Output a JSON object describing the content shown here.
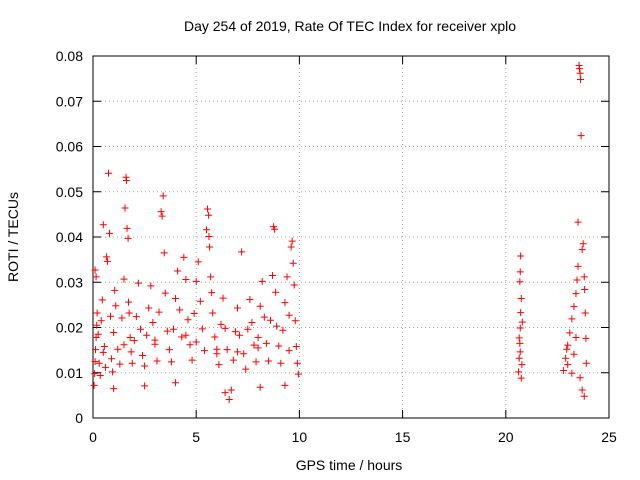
{
  "chart_data": {
    "type": "scatter",
    "title": "Day 254 of 2019, Rate Of TEC Index for receiver xplo",
    "xlabel": "GPS time / hours",
    "ylabel": "ROTI / TECUs",
    "xlim": [
      0,
      25
    ],
    "ylim": [
      0,
      0.08
    ],
    "x_ticks": [
      "0",
      "5",
      "10",
      "15",
      "20",
      "25"
    ],
    "y_ticks": [
      "0",
      "0.01",
      "0.02",
      "0.03",
      "0.04",
      "0.05",
      "0.06",
      "0.07",
      "0.08"
    ],
    "grid": true,
    "marker": "+",
    "color": "#ff0000",
    "series": [
      {
        "points": [
          [
            0.05,
            0.0072
          ],
          [
            0.08,
            0.0098
          ],
          [
            0.1,
            0.0125
          ],
          [
            0.12,
            0.0151
          ],
          [
            0.15,
            0.0178
          ],
          [
            0.18,
            0.0205
          ],
          [
            0.2,
            0.0232
          ],
          [
            0.1,
            0.0327
          ],
          [
            0.15,
            0.0312
          ],
          [
            0.25,
            0.0185
          ],
          [
            0.3,
            0.0121
          ],
          [
            0.35,
            0.0094
          ],
          [
            0.4,
            0.0215
          ],
          [
            0.45,
            0.0261
          ],
          [
            0.5,
            0.0427
          ],
          [
            0.55,
            0.0158
          ],
          [
            0.6,
            0.0112
          ],
          [
            0.65,
            0.0356
          ],
          [
            0.7,
            0.0346
          ],
          [
            0.75,
            0.0541
          ],
          [
            0.8,
            0.0408
          ],
          [
            0.85,
            0.0225
          ],
          [
            0.9,
            0.0131
          ],
          [
            0.95,
            0.0102
          ],
          [
            1.0,
            0.0189
          ],
          [
            1.05,
            0.0282
          ],
          [
            1.1,
            0.0248
          ],
          [
            1.2,
            0.0152
          ],
          [
            1.3,
            0.0119
          ],
          [
            1.4,
            0.0221
          ],
          [
            1.5,
            0.0307
          ],
          [
            1.55,
            0.0464
          ],
          [
            1.6,
            0.0532
          ],
          [
            1.62,
            0.0525
          ],
          [
            1.65,
            0.0419
          ],
          [
            1.7,
            0.0397
          ],
          [
            1.72,
            0.0256
          ],
          [
            1.75,
            0.0232
          ],
          [
            1.8,
            0.0178
          ],
          [
            1.85,
            0.0146
          ],
          [
            1.9,
            0.0121
          ],
          [
            2.0,
            0.0171
          ],
          [
            2.1,
            0.0224
          ],
          [
            2.2,
            0.0298
          ],
          [
            2.3,
            0.0196
          ],
          [
            2.4,
            0.0138
          ],
          [
            2.5,
            0.0115
          ],
          [
            2.6,
            0.0183
          ],
          [
            2.7,
            0.0243
          ],
          [
            2.8,
            0.0292
          ],
          [
            2.9,
            0.0211
          ],
          [
            3.0,
            0.0163
          ],
          [
            3.1,
            0.0126
          ],
          [
            3.2,
            0.0234
          ],
          [
            3.3,
            0.0456
          ],
          [
            3.35,
            0.0446
          ],
          [
            3.4,
            0.0491
          ],
          [
            3.45,
            0.0365
          ],
          [
            3.5,
            0.0276
          ],
          [
            3.6,
            0.0192
          ],
          [
            3.7,
            0.0151
          ],
          [
            3.8,
            0.0124
          ],
          [
            3.9,
            0.0196
          ],
          [
            4.0,
            0.0264
          ],
          [
            4.1,
            0.0325
          ],
          [
            4.2,
            0.0239
          ],
          [
            4.3,
            0.0179
          ],
          [
            4.4,
            0.0355
          ],
          [
            4.5,
            0.0306
          ],
          [
            4.6,
            0.0217
          ],
          [
            4.7,
            0.0162
          ],
          [
            4.8,
            0.0128
          ],
          [
            4.9,
            0.0231
          ],
          [
            5.0,
            0.0302
          ],
          [
            5.1,
            0.0345
          ],
          [
            5.2,
            0.0258
          ],
          [
            5.3,
            0.0197
          ],
          [
            5.4,
            0.0149
          ],
          [
            5.5,
            0.0416
          ],
          [
            5.55,
            0.0462
          ],
          [
            5.6,
            0.0448
          ],
          [
            5.62,
            0.0401
          ],
          [
            5.65,
            0.0378
          ],
          [
            5.7,
            0.0312
          ],
          [
            5.75,
            0.0277
          ],
          [
            5.8,
            0.0232
          ],
          [
            5.9,
            0.0179
          ],
          [
            6.0,
            0.0142
          ],
          [
            6.1,
            0.0118
          ],
          [
            6.2,
            0.0207
          ],
          [
            6.3,
            0.0265
          ],
          [
            6.4,
            0.0198
          ],
          [
            6.5,
            0.0151
          ],
          [
            6.6,
            0.0041
          ],
          [
            6.7,
            0.0062
          ],
          [
            6.8,
            0.0128
          ],
          [
            6.9,
            0.0191
          ],
          [
            7.0,
            0.0243
          ],
          [
            7.1,
            0.0183
          ],
          [
            7.2,
            0.0367
          ],
          [
            7.3,
            0.0142
          ],
          [
            7.4,
            0.0108
          ],
          [
            7.5,
            0.0196
          ],
          [
            7.6,
            0.0262
          ],
          [
            7.7,
            0.0211
          ],
          [
            7.8,
            0.0161
          ],
          [
            7.9,
            0.0124
          ],
          [
            8.0,
            0.0178
          ],
          [
            8.1,
            0.0247
          ],
          [
            8.2,
            0.0302
          ],
          [
            8.3,
            0.0223
          ],
          [
            8.4,
            0.0165
          ],
          [
            8.5,
            0.0126
          ],
          [
            8.6,
            0.0216
          ],
          [
            8.7,
            0.0315
          ],
          [
            8.75,
            0.0423
          ],
          [
            8.8,
            0.0417
          ],
          [
            8.85,
            0.0278
          ],
          [
            8.9,
            0.0203
          ],
          [
            9.0,
            0.0159
          ],
          [
            9.1,
            0.0121
          ],
          [
            9.2,
            0.0194
          ],
          [
            9.3,
            0.0255
          ],
          [
            9.4,
            0.0312
          ],
          [
            9.5,
            0.0227
          ],
          [
            9.6,
            0.0378
          ],
          [
            9.65,
            0.0391
          ],
          [
            9.7,
            0.0342
          ],
          [
            9.75,
            0.0294
          ],
          [
            9.8,
            0.0215
          ],
          [
            9.85,
            0.0158
          ],
          [
            9.9,
            0.0121
          ],
          [
            9.95,
            0.0097
          ],
          [
            1.0,
            0.0065
          ],
          [
            2.5,
            0.0071
          ],
          [
            4.0,
            0.0078
          ],
          [
            6.4,
            0.0056
          ],
          [
            8.1,
            0.0068
          ],
          [
            9.3,
            0.0072
          ],
          [
            0.5,
            0.0145
          ],
          [
            1.5,
            0.0162
          ],
          [
            3.0,
            0.0172
          ],
          [
            4.5,
            0.0183
          ],
          [
            5.0,
            0.0168
          ],
          [
            6.0,
            0.0152
          ],
          [
            7.0,
            0.0146
          ],
          [
            8.0,
            0.0155
          ],
          [
            9.5,
            0.0149
          ],
          [
            20.62,
            0.0102
          ],
          [
            20.65,
            0.0132
          ],
          [
            20.68,
            0.0165
          ],
          [
            20.7,
            0.0199
          ],
          [
            20.72,
            0.0233
          ],
          [
            20.75,
            0.0264
          ],
          [
            20.68,
            0.0301
          ],
          [
            20.7,
            0.0323
          ],
          [
            20.72,
            0.0358
          ],
          [
            20.75,
            0.0088
          ],
          [
            20.78,
            0.0118
          ],
          [
            20.65,
            0.0177
          ],
          [
            20.7,
            0.0146
          ],
          [
            20.8,
            0.0212
          ],
          [
            22.8,
            0.0105
          ],
          [
            22.9,
            0.0132
          ],
          [
            23.0,
            0.0161
          ],
          [
            23.1,
            0.0188
          ],
          [
            23.2,
            0.0219
          ],
          [
            23.3,
            0.0246
          ],
          [
            23.4,
            0.0275
          ],
          [
            23.45,
            0.0305
          ],
          [
            23.5,
            0.0335
          ],
          [
            23.55,
            0.0779
          ],
          [
            23.57,
            0.0772
          ],
          [
            23.6,
            0.0762
          ],
          [
            23.62,
            0.0748
          ],
          [
            23.65,
            0.0624
          ],
          [
            23.5,
            0.0433
          ],
          [
            23.7,
            0.0372
          ],
          [
            23.75,
            0.0385
          ],
          [
            23.8,
            0.0312
          ],
          [
            23.82,
            0.0284
          ],
          [
            23.85,
            0.0232
          ],
          [
            23.88,
            0.0176
          ],
          [
            23.9,
            0.0121
          ],
          [
            23.6,
            0.0089
          ],
          [
            23.7,
            0.0062
          ],
          [
            23.8,
            0.0048
          ],
          [
            23.3,
            0.0141
          ],
          [
            23.0,
            0.0118
          ],
          [
            22.95,
            0.0152
          ],
          [
            23.2,
            0.0099
          ],
          [
            23.4,
            0.0178
          ]
        ]
      }
    ]
  }
}
